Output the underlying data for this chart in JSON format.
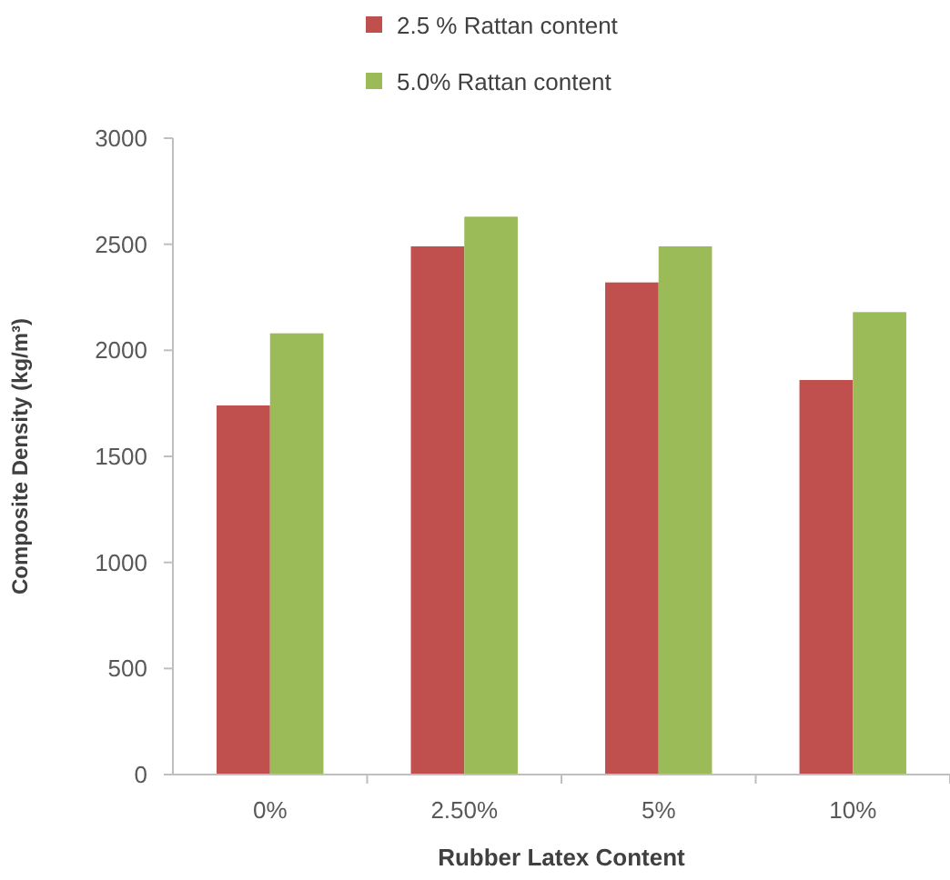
{
  "chart_data": {
    "type": "bar",
    "categories": [
      "0%",
      "2.50%",
      "5%",
      "10%"
    ],
    "series": [
      {
        "name": "2.5 % Rattan content",
        "color": "#c0504d",
        "values": [
          1740,
          2490,
          2320,
          1860
        ]
      },
      {
        "name": "5.0% Rattan content",
        "color": "#9bbb59",
        "values": [
          2080,
          2630,
          2490,
          2180
        ]
      }
    ],
    "xlabel": "Rubber Latex Content",
    "ylabel": "Composite Density (kg/m³)",
    "ylim": [
      0,
      3000
    ],
    "yticks": [
      0,
      500,
      1000,
      1500,
      2000,
      2500,
      3000
    ],
    "grid": false,
    "legend": "top"
  }
}
